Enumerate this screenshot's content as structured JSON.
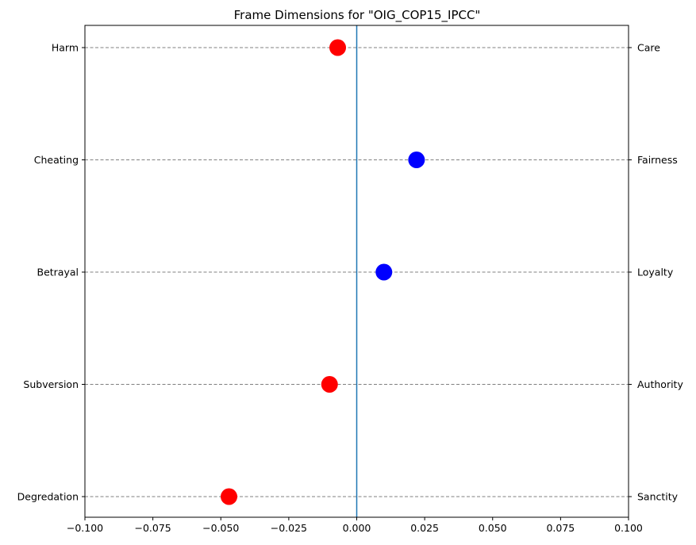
{
  "chart_data": {
    "type": "scatter",
    "title": "Frame Dimensions for \"OIG_COP15_IPCC\"",
    "xlim": [
      -0.1,
      0.1
    ],
    "x_ticks": [
      -0.1,
      -0.075,
      -0.05,
      -0.025,
      0.0,
      0.025,
      0.05,
      0.075,
      0.1
    ],
    "x_tick_labels": [
      "−0.100",
      "−0.075",
      "−0.050",
      "−0.025",
      "0.000",
      "0.025",
      "0.050",
      "0.075",
      "0.100"
    ],
    "grid": "horizontal dashed lines at each dimension",
    "reference_line_x": 0.0,
    "dimensions": [
      {
        "left_label": "Harm",
        "right_label": "Care",
        "value": -0.007,
        "color": "#ff0000"
      },
      {
        "left_label": "Cheating",
        "right_label": "Fairness",
        "value": 0.022,
        "color": "#0000ff"
      },
      {
        "left_label": "Betrayal",
        "right_label": "Loyalty",
        "value": 0.01,
        "color": "#0000ff"
      },
      {
        "left_label": "Subversion",
        "right_label": "Authority",
        "value": -0.01,
        "color": "#ff0000"
      },
      {
        "left_label": "Degredation",
        "right_label": "Sanctity",
        "value": -0.047,
        "color": "#ff0000"
      }
    ],
    "colors": {
      "negative": "#ff0000",
      "positive": "#0000ff",
      "zero_line": "#1f77b4",
      "grid": "#808080"
    }
  }
}
